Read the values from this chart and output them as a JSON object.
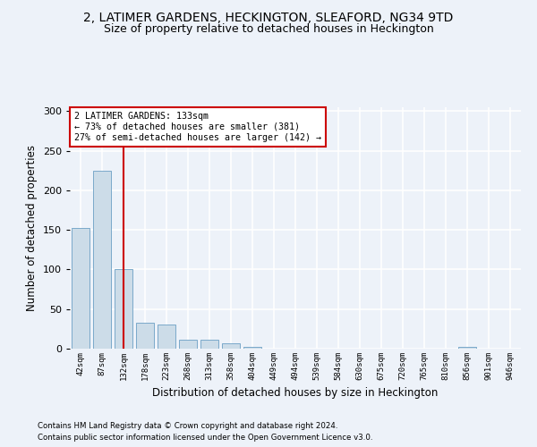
{
  "title1": "2, LATIMER GARDENS, HECKINGTON, SLEAFORD, NG34 9TD",
  "title2": "Size of property relative to detached houses in Heckington",
  "xlabel": "Distribution of detached houses by size in Heckington",
  "ylabel": "Number of detached properties",
  "footer1": "Contains HM Land Registry data © Crown copyright and database right 2024.",
  "footer2": "Contains public sector information licensed under the Open Government Licence v3.0.",
  "bin_labels": [
    "42sqm",
    "87sqm",
    "132sqm",
    "178sqm",
    "223sqm",
    "268sqm",
    "313sqm",
    "358sqm",
    "404sqm",
    "449sqm",
    "494sqm",
    "539sqm",
    "584sqm",
    "630sqm",
    "675sqm",
    "720sqm",
    "765sqm",
    "810sqm",
    "856sqm",
    "901sqm",
    "946sqm"
  ],
  "bar_values": [
    153,
    225,
    100,
    33,
    31,
    11,
    11,
    7,
    2,
    0,
    0,
    0,
    0,
    0,
    0,
    0,
    0,
    0,
    2,
    0,
    0
  ],
  "bar_color": "#ccdce8",
  "bar_edge_color": "#6b9fc4",
  "annotation_text": "2 LATIMER GARDENS: 133sqm\n← 73% of detached houses are smaller (381)\n27% of semi-detached houses are larger (142) →",
  "annotation_box_color": "#ffffff",
  "annotation_border_color": "#cc0000",
  "vline_x": 2,
  "vline_color": "#cc0000",
  "ylim": [
    0,
    305
  ],
  "yticks": [
    0,
    50,
    100,
    150,
    200,
    250,
    300
  ],
  "bg_color": "#edf2f9",
  "grid_color": "#ffffff",
  "title1_fontsize": 10,
  "title2_fontsize": 9,
  "xlabel_fontsize": 8.5,
  "ylabel_fontsize": 8.5
}
